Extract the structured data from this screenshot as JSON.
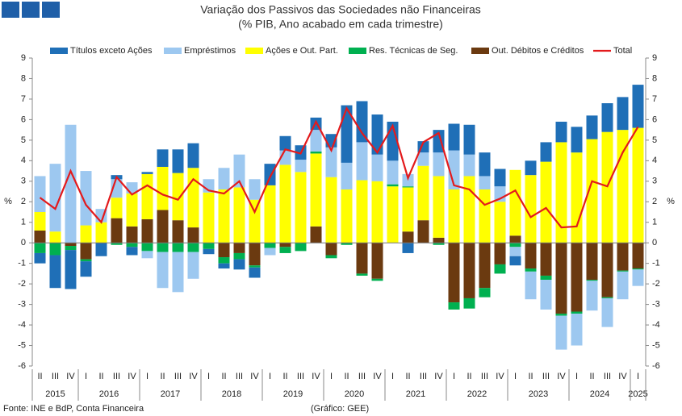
{
  "chart_data": {
    "type": "stacked_bar_line",
    "title": "Variação dos Passivos das Sociedades não Financeiras",
    "subtitle": "(% PIB, Ano acabado em cada trimestre)",
    "ylabel": "%",
    "y2label": "%",
    "source": "Fonte: INE e BdP, Conta Financeira",
    "credit": "(Gráfico: GEE)",
    "categories": [
      "II",
      "III",
      "IV",
      "I",
      "II",
      "III",
      "IV",
      "I",
      "II",
      "III",
      "IV",
      "I",
      "II",
      "III",
      "IV",
      "I",
      "II",
      "III",
      "IV",
      "I",
      "II",
      "III",
      "IV",
      "I",
      "II",
      "III",
      "IV",
      "I",
      "II",
      "III",
      "IV",
      "I",
      "II",
      "III",
      "IV",
      "I",
      "II",
      "III",
      "IV",
      "I"
    ],
    "years": [
      "2015",
      "2016",
      "2017",
      "2018",
      "2019",
      "2020",
      "2021",
      "2022",
      "2023",
      "2024",
      "2025"
    ],
    "ylim": [
      -6,
      9
    ],
    "yticks": [
      -6,
      -5,
      -4,
      -3,
      -2,
      -1,
      0,
      1,
      2,
      3,
      4,
      5,
      6,
      7,
      8,
      9
    ],
    "series": [
      {
        "name": "Títulos exceto Ações",
        "color": "#1f6fb7",
        "values": [
          -0.5,
          -1.6,
          -1.9,
          -0.75,
          -0.65,
          0.2,
          -0.4,
          0.1,
          0.85,
          1.15,
          1.2,
          -0.25,
          -0.25,
          -0.5,
          -0.5,
          1.05,
          0.7,
          0.7,
          0.6,
          0.65,
          2.8,
          2.0,
          1.95,
          1.9,
          -0.5,
          0.55,
          1.1,
          1.3,
          1.45,
          1.15,
          0.85,
          -0.45,
          0.7,
          0.95,
          1.0,
          1.25,
          1.15,
          1.4,
          1.6,
          2.1
        ]
      },
      {
        "name": "Empréstimos",
        "color": "#9dc8f0",
        "values": [
          1.75,
          3.3,
          5.75,
          2.65,
          0.65,
          0.9,
          0.55,
          -0.35,
          -1.75,
          -1.95,
          -1.3,
          0.65,
          1.05,
          1.6,
          1.0,
          -0.35,
          0.7,
          0.6,
          1.05,
          1.45,
          1.3,
          1.85,
          1.3,
          1.15,
          0.6,
          0.65,
          1.15,
          1.9,
          1.05,
          0.65,
          0.75,
          -0.45,
          -1.35,
          -1.45,
          -1.65,
          -1.55,
          -1.45,
          -1.4,
          -1.35,
          -0.8
        ]
      },
      {
        "name": "Ações e Out. Part.",
        "color": "#ffff00",
        "values": [
          0.9,
          0.55,
          0,
          0.85,
          1.0,
          1.0,
          1.6,
          2.2,
          2.1,
          2.3,
          2.9,
          2.45,
          2.6,
          2.7,
          2.1,
          2.8,
          3.8,
          3.45,
          3.55,
          3.2,
          2.6,
          3.05,
          3.0,
          2.75,
          2.15,
          2.65,
          3.0,
          2.6,
          3.25,
          2.6,
          2.0,
          3.2,
          3.3,
          3.95,
          4.9,
          4.4,
          5.05,
          5.4,
          5.5,
          5.6
        ]
      },
      {
        "name": "Res. Técnicas de Seg.",
        "color": "#00b050",
        "values": [
          -0.5,
          -0.6,
          -0.2,
          -0.1,
          0,
          -0.1,
          -0.2,
          -0.4,
          -0.45,
          -0.45,
          -0.45,
          -0.3,
          -0.3,
          -0.3,
          -0.1,
          -0.25,
          -0.3,
          -0.4,
          0.1,
          -0.15,
          -0.1,
          -0.1,
          -0.1,
          0.1,
          0.05,
          0,
          -0.1,
          -0.35,
          -0.5,
          -0.45,
          -0.45,
          -0.2,
          -0.15,
          -0.2,
          -0.1,
          -0.1,
          -0.05,
          -0.05,
          -0.05,
          -0.05
        ]
      },
      {
        "name": "Out. Débitos e Créditos",
        "color": "#6b3a10",
        "values": [
          0.6,
          0,
          -0.15,
          -0.8,
          0,
          1.2,
          0.8,
          1.15,
          1.6,
          1.1,
          0.75,
          0,
          -0.7,
          -0.5,
          -1.1,
          0,
          -0.2,
          0,
          0.8,
          -0.6,
          0,
          -1.5,
          -1.75,
          0,
          0.55,
          1.1,
          0.25,
          -2.9,
          -2.7,
          -2.2,
          -1.05,
          0.35,
          -1.25,
          -1.6,
          -3.45,
          -3.35,
          -1.8,
          -2.65,
          -1.35,
          -1.25
        ]
      },
      {
        "name": "Total",
        "color": "#e31a1c",
        "type": "line",
        "values": [
          2.2,
          1.65,
          3.5,
          1.85,
          1.0,
          3.2,
          2.35,
          2.8,
          2.35,
          2.1,
          3.1,
          2.55,
          2.4,
          3.0,
          1.5,
          3.2,
          4.55,
          4.35,
          5.9,
          4.5,
          6.55,
          5.35,
          4.4,
          5.7,
          3.15,
          4.9,
          5.35,
          2.8,
          2.6,
          1.85,
          2.15,
          2.55,
          1.25,
          1.7,
          0.75,
          0.8,
          3.0,
          2.75,
          4.4,
          5.65
        ]
      }
    ]
  }
}
